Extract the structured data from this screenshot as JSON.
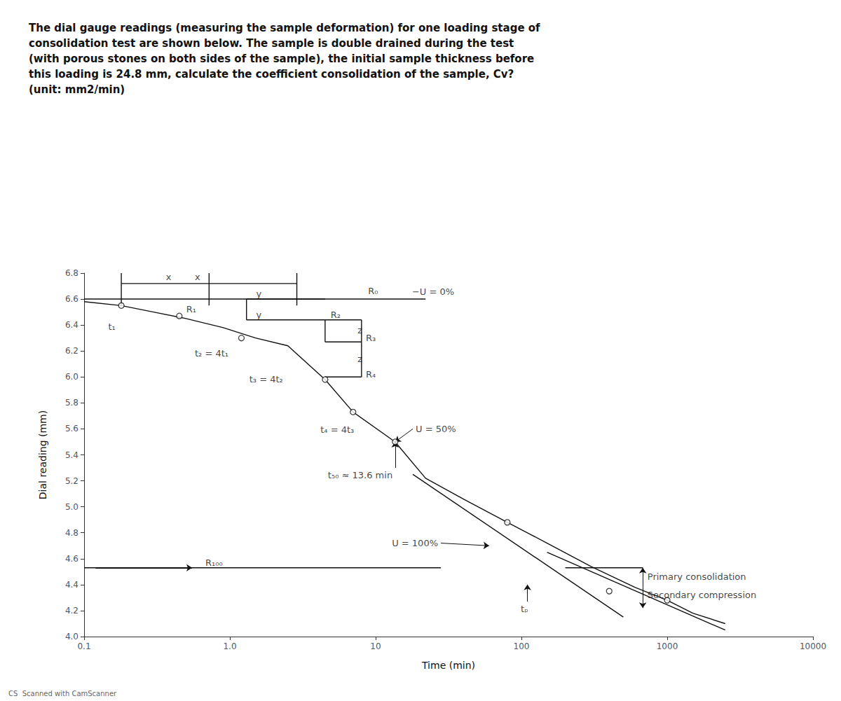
{
  "chart_data": {
    "type": "line",
    "title": "The dial gauge readings (measuring the sample deformation) for one loading stage of\nconsolidation test are shown below. The sample is double drained during the test\n(with porous stones on both sides of the sample), the initial sample thickness before\nthis loading is 24.8 mm, calculate the coefficient consolidation of the sample, Cv?\n(unit: mm2/min)",
    "x_label": "Time (min)",
    "y_label": "Dial reading (mm)",
    "footnote": "CS  Scanned with CamScanner",
    "log": "x",
    "grid": false,
    "color": "#111111",
    "xlim": [
      0.1,
      10000
    ],
    "xticks": [
      0.1,
      {
        "value": 1,
        "label": "1.0"
      },
      10,
      100,
      1000,
      10000
    ],
    "ylim": [
      4.0,
      6.8
    ],
    "yticks": [
      {
        "value": 4,
        "label": "4.0"
      },
      4.2,
      4.4,
      4.6,
      4.8,
      {
        "value": 5,
        "label": "5.0"
      },
      5.2,
      5.4,
      5.6,
      5.8,
      {
        "value": 6,
        "label": "6.0"
      },
      6.2,
      6.4,
      6.6,
      6.8
    ],
    "series": [
      {
        "type": "line",
        "x": [
          0.1,
          0.18,
          0.3,
          0.5,
          0.9,
          1.5,
          2.5,
          4.5,
          7.0,
          13.6,
          22,
          40,
          80,
          150,
          300,
          600,
          1000,
          1500,
          2500
        ],
        "values": [
          6.58,
          6.55,
          6.5,
          6.45,
          6.38,
          6.3,
          6.24,
          5.98,
          5.73,
          5.5,
          5.22,
          5.06,
          4.88,
          4.72,
          4.54,
          4.38,
          4.28,
          4.18,
          4.1
        ]
      },
      {
        "type": "scatter",
        "marker": "circle",
        "x": [
          0.18,
          0.45,
          1.2,
          4.5,
          7.0,
          13.6,
          80,
          400,
          1000
        ],
        "values": [
          6.55,
          6.47,
          6.3,
          5.98,
          5.73,
          5.5,
          4.88,
          4.35,
          4.28
        ]
      },
      {
        "type": "line",
        "x": [
          0.1,
          22
        ],
        "values": [
          6.6,
          6.6
        ]
      },
      {
        "type": "line",
        "x": [
          0.1,
          28
        ],
        "values": [
          4.53,
          4.53
        ]
      },
      {
        "type": "line",
        "x": [
          18,
          500
        ],
        "values": [
          5.25,
          4.15
        ]
      },
      {
        "type": "line",
        "x": [
          150,
          2500
        ],
        "values": [
          4.65,
          4.05
        ]
      },
      {
        "type": "line",
        "x": [
          0.18,
          0.18
        ],
        "values": [
          6.55,
          6.8
        ]
      },
      {
        "type": "line",
        "x": [
          0.72,
          0.72
        ],
        "values": [
          6.55,
          6.8
        ]
      },
      {
        "type": "line",
        "x": [
          2.88,
          2.88
        ],
        "values": [
          6.55,
          6.8
        ]
      },
      {
        "type": "line",
        "x": [
          0.18,
          0.72
        ],
        "values": [
          6.72,
          6.72
        ]
      },
      {
        "type": "line",
        "x": [
          0.72,
          2.88
        ],
        "values": [
          6.72,
          6.72
        ]
      },
      {
        "type": "line",
        "x": [
          1.3,
          4.5
        ],
        "values": [
          6.6,
          6.6
        ]
      },
      {
        "type": "line",
        "x": [
          1.3,
          4.5
        ],
        "values": [
          6.44,
          6.44
        ]
      },
      {
        "type": "line",
        "x": [
          1.3,
          1.3
        ],
        "values": [
          6.44,
          6.6
        ]
      },
      {
        "type": "line",
        "x": [
          4.5,
          4.5
        ],
        "values": [
          6.27,
          6.44
        ]
      },
      {
        "type": "line",
        "x": [
          4.5,
          8.0
        ],
        "values": [
          6.44,
          6.44
        ]
      },
      {
        "type": "line",
        "x": [
          4.5,
          8.0
        ],
        "values": [
          6.27,
          6.27
        ]
      },
      {
        "type": "line",
        "x": [
          4.5,
          8.0
        ],
        "values": [
          6.0,
          6.0
        ]
      },
      {
        "type": "line",
        "x": [
          8.0,
          8.0
        ],
        "values": [
          6.27,
          6.44
        ]
      },
      {
        "type": "line",
        "x": [
          8.0,
          8.0
        ],
        "values": [
          6.0,
          6.27
        ]
      },
      {
        "type": "line",
        "x": [
          200,
          680
        ],
        "values": [
          4.53,
          4.53
        ]
      }
    ],
    "annotations": [
      {
        "text": "−U = 0%",
        "x": 17,
        "y": 6.62
      },
      {
        "text": "U = 50%",
        "x": 18,
        "y": 5.6
      },
      {
        "text": "U = 100%",
        "x": 28,
        "y": 4.72
      },
      {
        "text": "t₅₀ ≈ 13.6 min",
        "x": 4.5,
        "y": 5.28
      },
      {
        "text": "tₚ",
        "x": 105,
        "y": 4.25
      },
      {
        "text": "t₁",
        "x": 0.14,
        "y": 6.42
      },
      {
        "text": "t₂ = 4t₁",
        "x": 0.55,
        "y": 6.22
      },
      {
        "text": "t₃ = 4t₂",
        "x": 1.3,
        "y": 6.02
      },
      {
        "text": "t₄ = 4t₃",
        "x": 4.0,
        "y": 5.63
      },
      {
        "text": "R₁",
        "x": 0.48,
        "y": 6.52
      },
      {
        "text": "R₀",
        "x": 8.5,
        "y": 6.66
      },
      {
        "text": "R₂",
        "x": 4.7,
        "y": 6.48
      },
      {
        "text": "z",
        "x": 7.2,
        "y": 6.36
      },
      {
        "text": "R₃",
        "x": 8.2,
        "y": 6.3
      },
      {
        "text": "z",
        "x": 7.2,
        "y": 6.14
      },
      {
        "text": "R₄",
        "x": 8.2,
        "y": 6.02
      },
      {
        "text": "x",
        "x": 0.38,
        "y": 6.77
      },
      {
        "text": "x",
        "x": 0.6,
        "y": 6.77
      },
      {
        "text": "y",
        "x": 1.45,
        "y": 6.64
      },
      {
        "text": "y",
        "x": 1.45,
        "y": 6.48
      },
      {
        "text": "R₁₀₀",
        "x": 0.65,
        "y": 4.535
      },
      {
        "text": "Primary consolidation",
        "x": 700,
        "y": 4.46
      },
      {
        "text": "Secondary compression",
        "x": 700,
        "y": 4.32
      }
    ],
    "arrows": [
      {
        "from": [
          18,
          5.6
        ],
        "to": [
          13.6,
          5.5
        ]
      },
      {
        "from": [
          28,
          4.72
        ],
        "to": [
          60,
          4.7
        ]
      },
      {
        "from": [
          13.6,
          5.3
        ],
        "to": [
          13.6,
          5.5
        ]
      },
      {
        "from": [
          110,
          4.27
        ],
        "to": [
          110,
          4.4
        ]
      },
      {
        "from": [
          0.12,
          4.53
        ],
        "to": [
          0.55,
          4.53
        ]
      },
      {
        "from": [
          680,
          4.38
        ],
        "to": [
          680,
          4.53
        ]
      },
      {
        "from": [
          680,
          4.38
        ],
        "to": [
          680,
          4.22
        ]
      }
    ]
  }
}
